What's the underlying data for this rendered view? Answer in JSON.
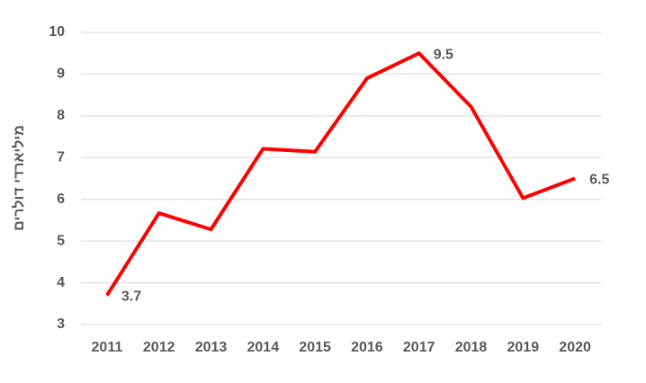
{
  "chart_data": {
    "type": "line",
    "y_label": "מיליארדי דולרים",
    "categories": [
      "2011",
      "2012",
      "2013",
      "2014",
      "2015",
      "2016",
      "2017",
      "2018",
      "2019",
      "2020"
    ],
    "values": [
      3.7,
      5.67,
      5.28,
      7.21,
      7.14,
      8.9,
      9.5,
      8.22,
      6.03,
      6.5
    ],
    "value_labels": [
      "3.7",
      null,
      null,
      null,
      null,
      null,
      "9.5",
      null,
      null,
      "6.5"
    ],
    "color": "#ff0000",
    "ylim": [
      3,
      10
    ],
    "yticks": [
      3,
      4,
      5,
      6,
      7,
      8,
      9,
      10
    ],
    "grid": true
  }
}
